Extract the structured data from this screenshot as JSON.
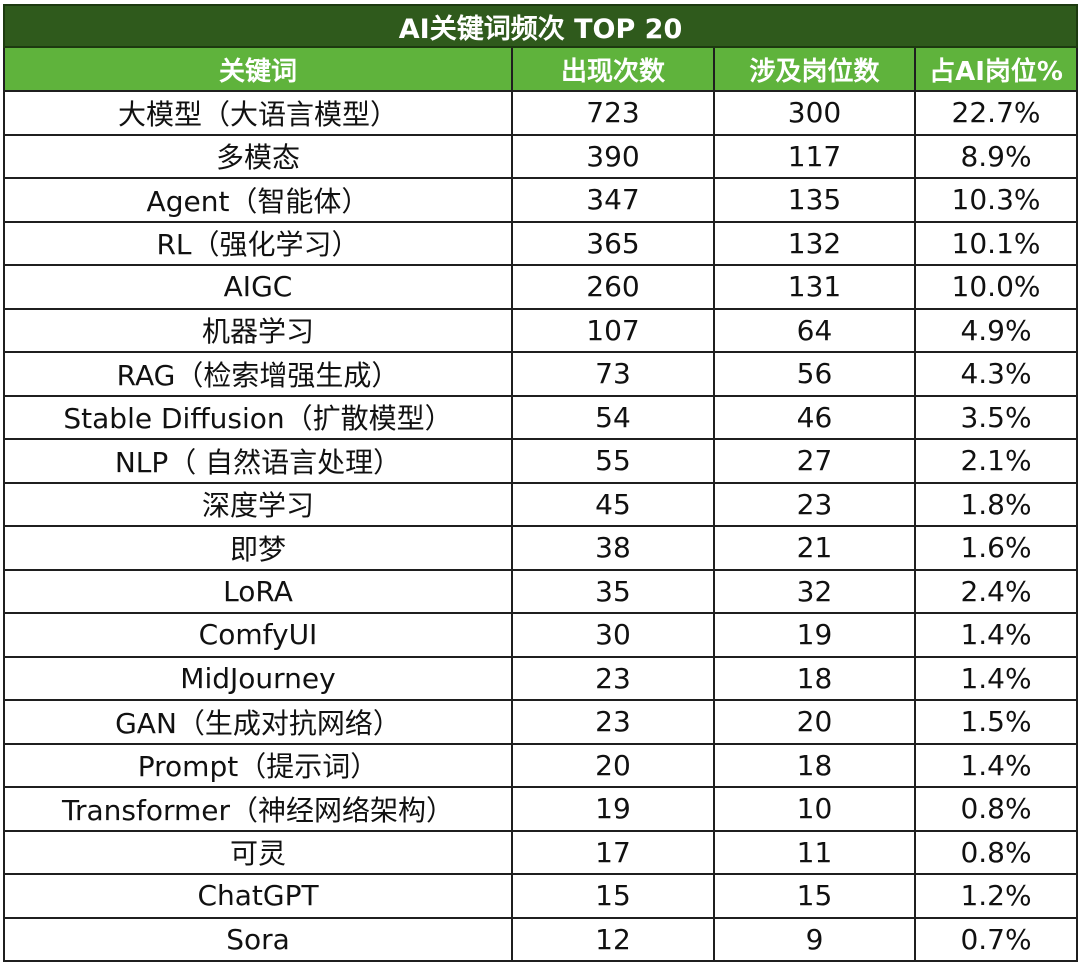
{
  "table": {
    "title": "AI关键词频次 TOP 20",
    "headers": [
      "关键词",
      "出现次数",
      "涉及岗位数",
      "占AI岗位%"
    ],
    "rows": [
      [
        "大模型（大语言模型）",
        "723",
        "300",
        "22.7%"
      ],
      [
        "多模态",
        "390",
        "117",
        "8.9%"
      ],
      [
        "Agent（智能体）",
        "347",
        "135",
        "10.3%"
      ],
      [
        "RL（强化学习）",
        "365",
        "132",
        "10.1%"
      ],
      [
        "AIGC",
        "260",
        "131",
        "10.0%"
      ],
      [
        "机器学习",
        "107",
        "64",
        "4.9%"
      ],
      [
        "RAG（检索增强生成）",
        "73",
        "56",
        "4.3%"
      ],
      [
        "Stable Diffusion（扩散模型）",
        "54",
        "46",
        "3.5%"
      ],
      [
        "NLP（ 自然语言处理）",
        "55",
        "27",
        "2.1%"
      ],
      [
        "深度学习",
        "45",
        "23",
        "1.8%"
      ],
      [
        "即梦",
        "38",
        "21",
        "1.6%"
      ],
      [
        "LoRA",
        "35",
        "32",
        "2.4%"
      ],
      [
        "ComfyUI",
        "30",
        "19",
        "1.4%"
      ],
      [
        "MidJourney",
        "23",
        "18",
        "1.4%"
      ],
      [
        "GAN（生成对抗网络）",
        "23",
        "20",
        "1.5%"
      ],
      [
        "Prompt（提示词）",
        "20",
        "18",
        "1.4%"
      ],
      [
        "Transformer（神经网络架构）",
        "19",
        "10",
        "0.8%"
      ],
      [
        "可灵",
        "17",
        "11",
        "0.8%"
      ],
      [
        "ChatGPT",
        "15",
        "15",
        "1.2%"
      ],
      [
        "Sora",
        "12",
        "9",
        "0.7%"
      ]
    ]
  },
  "colors": {
    "title_bg": "#2f5a1c",
    "header_bg": "#5fb33c",
    "text": "#111111",
    "border": "#1f1f1f"
  }
}
